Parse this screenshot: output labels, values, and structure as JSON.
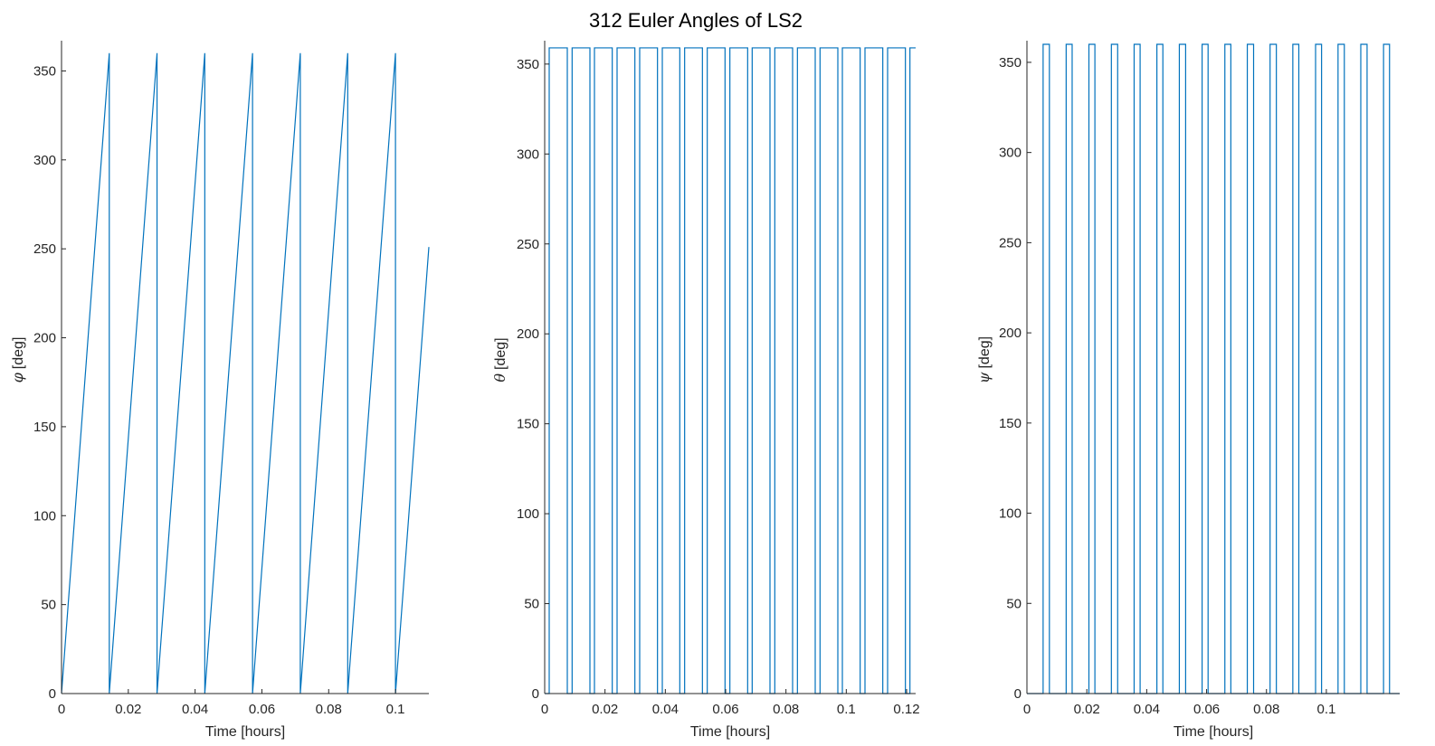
{
  "figure": {
    "title": "312 Euler Angles of LS2"
  },
  "colors": {
    "series": "#0072BD",
    "axis": "#262626",
    "background": "#ffffff"
  },
  "chart_data": [
    {
      "type": "line",
      "title": "",
      "xlabel": "Time [hours]",
      "ylabel_symbol": "φ",
      "ylabel_unit": "[deg]",
      "xlim": [
        0,
        0.11
      ],
      "ylim": [
        0,
        367
      ],
      "xticks": [
        0,
        0.02,
        0.04,
        0.06,
        0.08,
        0.1
      ],
      "xtick_labels": [
        "0",
        "0.02",
        "0.04",
        "0.06",
        "0.08",
        "0.1"
      ],
      "yticks": [
        0,
        50,
        100,
        150,
        200,
        250,
        300,
        350
      ],
      "ytick_labels": [
        "0",
        "50",
        "100",
        "150",
        "200",
        "250",
        "300",
        "350"
      ],
      "series": [
        {
          "x": [
            0,
            0.0143,
            0.0143,
            0.0286,
            0.0286,
            0.0429,
            0.0429,
            0.0572,
            0.0572,
            0.0715,
            0.0715,
            0.0857,
            0.0857,
            0.1,
            0.1,
            0.11
          ],
          "y": [
            0,
            360,
            0,
            360,
            0,
            360,
            0,
            360,
            0,
            360,
            0,
            360,
            0,
            360,
            0,
            251
          ]
        }
      ]
    },
    {
      "type": "line",
      "title": "",
      "xlabel": "Time [hours]",
      "ylabel_symbol": "θ",
      "ylabel_unit": "[deg]",
      "xlim": [
        0,
        0.123
      ],
      "ylim": [
        0,
        363
      ],
      "xticks": [
        0,
        0.02,
        0.04,
        0.06,
        0.08,
        0.1,
        0.12
      ],
      "xtick_labels": [
        "0",
        "0.02",
        "0.04",
        "0.06",
        "0.08",
        "0.1",
        "0.12"
      ],
      "yticks": [
        0,
        50,
        100,
        150,
        200,
        250,
        300,
        350
      ],
      "ytick_labels": [
        "0",
        "50",
        "100",
        "150",
        "200",
        "250",
        "300",
        "350"
      ],
      "series": [
        {
          "x": [
            0,
            0.0015,
            0.0015,
            0.0075,
            0.0075,
            0.0091,
            0.0091,
            0.015,
            0.015,
            0.0165,
            0.0165,
            0.0224,
            0.0224,
            0.024,
            0.024,
            0.0299,
            0.0299,
            0.0315,
            0.0315,
            0.0374,
            0.0374,
            0.039,
            0.039,
            0.0448,
            0.0448,
            0.0464,
            0.0464,
            0.0523,
            0.0523,
            0.0539,
            0.0539,
            0.0598,
            0.0598,
            0.0614,
            0.0614,
            0.0673,
            0.0673,
            0.0688,
            0.0688,
            0.0747,
            0.0747,
            0.0763,
            0.0763,
            0.0822,
            0.0822,
            0.0838,
            0.0838,
            0.0897,
            0.0897,
            0.0913,
            0.0913,
            0.0972,
            0.0972,
            0.0987,
            0.0987,
            0.1046,
            0.1046,
            0.1062,
            0.1062,
            0.1121,
            0.1121,
            0.1137,
            0.1137,
            0.1196,
            0.1196,
            0.1211,
            0.1211,
            0.123
          ],
          "y": [
            0,
            0,
            359,
            359,
            0,
            0,
            359,
            359,
            0,
            0,
            359,
            359,
            0,
            0,
            359,
            359,
            0,
            0,
            359,
            359,
            0,
            0,
            359,
            359,
            0,
            0,
            359,
            359,
            0,
            0,
            359,
            359,
            0,
            0,
            359,
            359,
            0,
            0,
            359,
            359,
            0,
            0,
            359,
            359,
            0,
            0,
            359,
            359,
            0,
            0,
            359,
            359,
            0,
            0,
            359,
            359,
            0,
            0,
            359,
            359,
            0,
            0,
            359,
            359,
            0,
            0,
            359,
            359
          ]
        }
      ]
    },
    {
      "type": "line",
      "title": "",
      "xlabel": "Time [hours]",
      "ylabel_symbol": "ψ",
      "ylabel_unit": "[deg]",
      "xlim": [
        0,
        0.1245
      ],
      "ylim": [
        0,
        362
      ],
      "xticks": [
        0,
        0.02,
        0.04,
        0.06,
        0.08,
        0.1
      ],
      "xtick_labels": [
        "0",
        "0.02",
        "0.04",
        "0.06",
        "0.08",
        "0.1"
      ],
      "yticks": [
        0,
        50,
        100,
        150,
        200,
        250,
        300,
        350
      ],
      "ytick_labels": [
        "0",
        "50",
        "100",
        "150",
        "200",
        "250",
        "300",
        "350"
      ],
      "series": [
        {
          "x": [
            0,
            0.0054,
            0.0054,
            0.0075,
            0.0075,
            0.0131,
            0.0131,
            0.0151,
            0.0151,
            0.0207,
            0.0207,
            0.0227,
            0.0227,
            0.0282,
            0.0282,
            0.0303,
            0.0303,
            0.0358,
            0.0358,
            0.0378,
            0.0378,
            0.0434,
            0.0434,
            0.0454,
            0.0454,
            0.0509,
            0.0509,
            0.053,
            0.053,
            0.0585,
            0.0585,
            0.0605,
            0.0605,
            0.0661,
            0.0661,
            0.0681,
            0.0681,
            0.0736,
            0.0736,
            0.0757,
            0.0757,
            0.0812,
            0.0812,
            0.0833,
            0.0833,
            0.0888,
            0.0888,
            0.0908,
            0.0908,
            0.0964,
            0.0964,
            0.0984,
            0.0984,
            0.1039,
            0.1039,
            0.106,
            0.106,
            0.1115,
            0.1115,
            0.1136,
            0.1136,
            0.1191,
            0.1191,
            0.1211,
            0.1211,
            0.1245
          ],
          "y": [
            0,
            0,
            360,
            360,
            0,
            0,
            360,
            360,
            0,
            0,
            360,
            360,
            0,
            0,
            360,
            360,
            0,
            0,
            360,
            360,
            0,
            0,
            360,
            360,
            0,
            0,
            360,
            360,
            0,
            0,
            360,
            360,
            0,
            0,
            360,
            360,
            0,
            0,
            360,
            360,
            0,
            0,
            360,
            360,
            0,
            0,
            360,
            360,
            0,
            0,
            360,
            360,
            0,
            0,
            360,
            360,
            0,
            0,
            360,
            360,
            0,
            0,
            360,
            360,
            0,
            0
          ]
        }
      ]
    }
  ]
}
